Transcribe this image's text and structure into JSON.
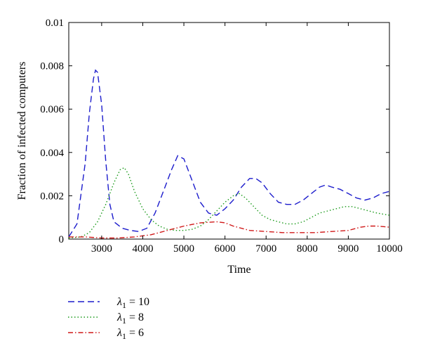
{
  "chart_data": {
    "type": "line",
    "title": "",
    "xlabel": "Time",
    "ylabel": "Fraction of infected computers",
    "xlim": [
      2200,
      10000
    ],
    "ylim": [
      0,
      0.01
    ],
    "xticks": [
      3000,
      4000,
      5000,
      6000,
      7000,
      8000,
      9000,
      10000
    ],
    "xtick_labels": [
      "3000",
      "4000",
      "5000",
      "6000",
      "7000",
      "8000",
      "9000",
      "10000"
    ],
    "yticks": [
      0,
      0.002,
      0.004,
      0.006,
      0.008,
      0.01
    ],
    "ytick_labels": [
      "0",
      "0.002",
      "0.004",
      "0.006",
      "0.008",
      "0.01"
    ],
    "grid": false,
    "legend_position": "bottom-left, below plot",
    "series": [
      {
        "legend_symbol": "λ",
        "legend_subscript": "1",
        "legend_value": "= 10",
        "color": "#1c1ccc",
        "style": "dashed",
        "x": [
          2200,
          2400,
          2600,
          2700,
          2800,
          2850,
          2900,
          3000,
          3100,
          3200,
          3300,
          3500,
          3700,
          3900,
          4100,
          4300,
          4500,
          4700,
          4850,
          5000,
          5200,
          5400,
          5600,
          5800,
          6000,
          6200,
          6400,
          6600,
          6750,
          6900,
          7100,
          7300,
          7500,
          7700,
          7900,
          8100,
          8300,
          8450,
          8600,
          8800,
          9000,
          9200,
          9400,
          9600,
          9800,
          10000
        ],
        "y": [
          0.0001,
          0.0007,
          0.0035,
          0.0058,
          0.0074,
          0.0078,
          0.0077,
          0.0062,
          0.0036,
          0.0016,
          0.0008,
          0.0005,
          0.0004,
          0.00035,
          0.0005,
          0.0012,
          0.0022,
          0.0032,
          0.00385,
          0.0037,
          0.0027,
          0.0017,
          0.0012,
          0.0011,
          0.0014,
          0.0018,
          0.0024,
          0.0028,
          0.0028,
          0.0026,
          0.0021,
          0.0017,
          0.0016,
          0.0016,
          0.0018,
          0.0021,
          0.0024,
          0.0025,
          0.0024,
          0.0023,
          0.0021,
          0.0019,
          0.0018,
          0.0019,
          0.0021,
          0.0022
        ]
      },
      {
        "legend_symbol": "λ",
        "legend_subscript": "1",
        "legend_value": "= 8",
        "color": "#1a9a1a",
        "style": "dotted",
        "x": [
          2200,
          2500,
          2700,
          2900,
          3100,
          3300,
          3450,
          3550,
          3650,
          3800,
          4000,
          4200,
          4400,
          4600,
          4800,
          5000,
          5200,
          5400,
          5600,
          5800,
          6000,
          6200,
          6350,
          6500,
          6700,
          6900,
          7100,
          7300,
          7500,
          7700,
          7900,
          8100,
          8300,
          8500,
          8700,
          8900,
          9100,
          9300,
          9500,
          9700,
          10000
        ],
        "y": [
          5e-05,
          0.0001,
          0.0003,
          0.0008,
          0.0016,
          0.0026,
          0.0032,
          0.0033,
          0.003,
          0.0022,
          0.0014,
          0.0009,
          0.0006,
          0.00045,
          0.0004,
          0.0004,
          0.00045,
          0.0006,
          0.0009,
          0.0013,
          0.0017,
          0.002,
          0.0021,
          0.0019,
          0.0015,
          0.0011,
          0.0009,
          0.0008,
          0.0007,
          0.0007,
          0.0008,
          0.001,
          0.0012,
          0.0013,
          0.0014,
          0.0015,
          0.0015,
          0.0014,
          0.0013,
          0.0012,
          0.0011
        ]
      },
      {
        "legend_symbol": "λ",
        "legend_subscript": "1",
        "legend_value": "= 6",
        "color": "#d01818",
        "style": "dashdot",
        "x": [
          2200,
          2600,
          3000,
          3400,
          3800,
          4200,
          4600,
          5000,
          5400,
          5800,
          6000,
          6200,
          6600,
          7000,
          7400,
          7800,
          8200,
          8600,
          9000,
          9300,
          9500,
          9700,
          10000
        ],
        "y": [
          0.0001,
          0.0001,
          5e-05,
          5e-05,
          0.0001,
          0.0002,
          0.0004,
          0.0006,
          0.00075,
          0.0008,
          0.00075,
          0.0006,
          0.0004,
          0.00035,
          0.0003,
          0.0003,
          0.0003,
          0.00035,
          0.0004,
          0.00055,
          0.0006,
          0.0006,
          0.00055
        ]
      }
    ]
  }
}
